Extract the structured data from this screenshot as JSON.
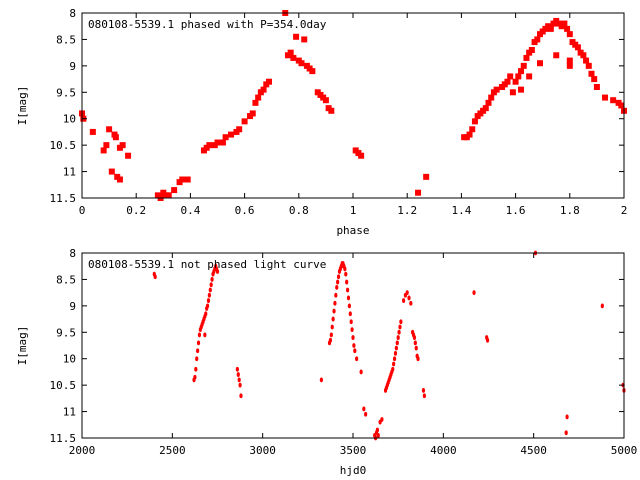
{
  "chart_data": [
    {
      "type": "scatter",
      "title": "080108-5539.1 phased with P=354.0day",
      "xlabel": "phase",
      "ylabel": "I[mag]",
      "xlim": [
        0,
        2
      ],
      "ylim": [
        11.5,
        8
      ],
      "y_inverted": true,
      "x_ticks": [
        "0",
        "0.2",
        "0.4",
        "0.6",
        "0.8",
        "1",
        "1.2",
        "1.4",
        "1.6",
        "1.8",
        "2"
      ],
      "y_ticks": [
        "8",
        "8.5",
        "9",
        "9.5",
        "10",
        "10.5",
        "11",
        "11.5"
      ],
      "marker_color": "#ff0000",
      "marker": "star",
      "points": [
        [
          0.0,
          9.9
        ],
        [
          0.005,
          10.0
        ],
        [
          0.04,
          10.25
        ],
        [
          0.08,
          10.6
        ],
        [
          0.09,
          10.5
        ],
        [
          0.1,
          10.2
        ],
        [
          0.11,
          11.0
        ],
        [
          0.12,
          10.3
        ],
        [
          0.125,
          10.35
        ],
        [
          0.13,
          11.1
        ],
        [
          0.14,
          11.15
        ],
        [
          0.14,
          10.55
        ],
        [
          0.15,
          10.5
        ],
        [
          0.17,
          10.7
        ],
        [
          0.28,
          11.45
        ],
        [
          0.29,
          11.5
        ],
        [
          0.3,
          11.4
        ],
        [
          0.31,
          11.45
        ],
        [
          0.32,
          11.45
        ],
        [
          0.34,
          11.35
        ],
        [
          0.36,
          11.2
        ],
        [
          0.37,
          11.15
        ],
        [
          0.39,
          11.15
        ],
        [
          0.45,
          10.6
        ],
        [
          0.46,
          10.55
        ],
        [
          0.47,
          10.5
        ],
        [
          0.49,
          10.5
        ],
        [
          0.5,
          10.45
        ],
        [
          0.52,
          10.45
        ],
        [
          0.53,
          10.35
        ],
        [
          0.55,
          10.3
        ],
        [
          0.57,
          10.25
        ],
        [
          0.58,
          10.2
        ],
        [
          0.6,
          10.05
        ],
        [
          0.62,
          9.95
        ],
        [
          0.63,
          9.9
        ],
        [
          0.64,
          9.7
        ],
        [
          0.65,
          9.6
        ],
        [
          0.66,
          9.5
        ],
        [
          0.67,
          9.45
        ],
        [
          0.68,
          9.35
        ],
        [
          0.69,
          9.3
        ],
        [
          0.75,
          8.0
        ],
        [
          0.76,
          8.8
        ],
        [
          0.77,
          8.75
        ],
        [
          0.78,
          8.85
        ],
        [
          0.79,
          8.45
        ],
        [
          0.8,
          8.9
        ],
        [
          0.81,
          8.95
        ],
        [
          0.82,
          8.5
        ],
        [
          0.83,
          9.0
        ],
        [
          0.84,
          9.05
        ],
        [
          0.85,
          9.1
        ],
        [
          0.87,
          9.5
        ],
        [
          0.88,
          9.55
        ],
        [
          0.89,
          9.6
        ],
        [
          0.9,
          9.65
        ],
        [
          0.91,
          9.8
        ],
        [
          0.92,
          9.85
        ],
        [
          1.01,
          10.6
        ],
        [
          1.02,
          10.65
        ],
        [
          1.03,
          10.7
        ],
        [
          1.24,
          11.4
        ],
        [
          1.27,
          11.1
        ],
        [
          1.41,
          10.35
        ],
        [
          1.42,
          10.35
        ],
        [
          1.43,
          10.3
        ],
        [
          1.44,
          10.2
        ],
        [
          1.45,
          10.05
        ],
        [
          1.46,
          9.95
        ],
        [
          1.47,
          9.9
        ],
        [
          1.48,
          9.85
        ],
        [
          1.49,
          9.8
        ],
        [
          1.5,
          9.7
        ],
        [
          1.51,
          9.6
        ],
        [
          1.52,
          9.5
        ],
        [
          1.53,
          9.45
        ],
        [
          1.55,
          9.4
        ],
        [
          1.56,
          9.35
        ],
        [
          1.57,
          9.3
        ],
        [
          1.58,
          9.2
        ],
        [
          1.59,
          9.5
        ],
        [
          1.6,
          9.3
        ],
        [
          1.61,
          9.2
        ],
        [
          1.62,
          9.1
        ],
        [
          1.63,
          9.0
        ],
        [
          1.64,
          8.85
        ],
        [
          1.65,
          8.75
        ],
        [
          1.66,
          8.7
        ],
        [
          1.67,
          8.55
        ],
        [
          1.68,
          8.5
        ],
        [
          1.69,
          8.4
        ],
        [
          1.7,
          8.35
        ],
        [
          1.71,
          8.3
        ],
        [
          1.72,
          8.25
        ],
        [
          1.73,
          8.3
        ],
        [
          1.74,
          8.2
        ],
        [
          1.75,
          8.15
        ],
        [
          1.76,
          8.2
        ],
        [
          1.77,
          8.25
        ],
        [
          1.78,
          8.2
        ],
        [
          1.79,
          8.3
        ],
        [
          1.8,
          8.4
        ],
        [
          1.81,
          8.55
        ],
        [
          1.82,
          8.6
        ],
        [
          1.83,
          8.65
        ],
        [
          1.84,
          8.75
        ],
        [
          1.85,
          8.8
        ],
        [
          1.86,
          8.9
        ],
        [
          1.87,
          9.0
        ],
        [
          1.88,
          9.15
        ],
        [
          1.89,
          9.25
        ],
        [
          1.9,
          9.4
        ],
        [
          1.93,
          9.6
        ],
        [
          1.96,
          9.65
        ],
        [
          1.98,
          9.7
        ],
        [
          1.99,
          9.75
        ],
        [
          2.0,
          9.85
        ],
        [
          1.8,
          9.0
        ],
        [
          1.8,
          8.9
        ],
        [
          1.75,
          8.8
        ],
        [
          1.69,
          8.95
        ],
        [
          1.65,
          9.2
        ],
        [
          1.62,
          9.45
        ]
      ]
    },
    {
      "type": "scatter",
      "title": "080108-5539.1 not phased light curve",
      "xlabel": "hjd0",
      "ylabel": "I[mag]",
      "xlim": [
        2000,
        5000
      ],
      "ylim": [
        11.5,
        8
      ],
      "y_inverted": true,
      "x_ticks": [
        "2000",
        "2500",
        "3000",
        "3500",
        "4000",
        "4500",
        "5000"
      ],
      "y_ticks": [
        "8",
        "8.5",
        "9",
        "9.5",
        "10",
        "10.5",
        "11",
        "11.5"
      ],
      "marker_color": "#ff0000",
      "marker": "dot",
      "points": [
        [
          2400,
          8.4
        ],
        [
          2405,
          8.45
        ],
        [
          2620,
          10.4
        ],
        [
          2625,
          10.35
        ],
        [
          2630,
          10.2
        ],
        [
          2635,
          10.0
        ],
        [
          2640,
          9.85
        ],
        [
          2645,
          9.7
        ],
        [
          2650,
          9.55
        ],
        [
          2655,
          9.45
        ],
        [
          2660,
          9.4
        ],
        [
          2665,
          9.35
        ],
        [
          2670,
          9.3
        ],
        [
          2675,
          9.25
        ],
        [
          2680,
          9.2
        ],
        [
          2685,
          9.15
        ],
        [
          2690,
          9.05
        ],
        [
          2695,
          9.0
        ],
        [
          2700,
          8.9
        ],
        [
          2705,
          8.8
        ],
        [
          2710,
          8.7
        ],
        [
          2715,
          8.6
        ],
        [
          2720,
          8.5
        ],
        [
          2725,
          8.4
        ],
        [
          2730,
          8.35
        ],
        [
          2735,
          8.3
        ],
        [
          2740,
          8.25
        ],
        [
          2745,
          8.3
        ],
        [
          2750,
          8.35
        ],
        [
          2680,
          9.55
        ],
        [
          2860,
          10.2
        ],
        [
          2865,
          10.3
        ],
        [
          2870,
          10.4
        ],
        [
          2875,
          10.5
        ],
        [
          2880,
          10.7
        ],
        [
          3325,
          10.4
        ],
        [
          3370,
          9.7
        ],
        [
          3375,
          9.65
        ],
        [
          3380,
          9.55
        ],
        [
          3385,
          9.4
        ],
        [
          3390,
          9.25
        ],
        [
          3395,
          9.1
        ],
        [
          3400,
          8.95
        ],
        [
          3405,
          8.8
        ],
        [
          3410,
          8.65
        ],
        [
          3415,
          8.55
        ],
        [
          3420,
          8.45
        ],
        [
          3425,
          8.35
        ],
        [
          3430,
          8.3
        ],
        [
          3435,
          8.25
        ],
        [
          3440,
          8.2
        ],
        [
          3445,
          8.2
        ],
        [
          3450,
          8.25
        ],
        [
          3455,
          8.3
        ],
        [
          3460,
          8.4
        ],
        [
          3465,
          8.55
        ],
        [
          3470,
          8.7
        ],
        [
          3475,
          8.85
        ],
        [
          3480,
          9.0
        ],
        [
          3485,
          9.15
        ],
        [
          3490,
          9.3
        ],
        [
          3495,
          9.45
        ],
        [
          3500,
          9.6
        ],
        [
          3505,
          9.75
        ],
        [
          3510,
          9.85
        ],
        [
          3520,
          10.0
        ],
        [
          3545,
          10.25
        ],
        [
          3560,
          10.95
        ],
        [
          3570,
          11.05
        ],
        [
          3620,
          11.45
        ],
        [
          3625,
          11.5
        ],
        [
          3630,
          11.4
        ],
        [
          3635,
          11.35
        ],
        [
          3640,
          11.45
        ],
        [
          3650,
          11.2
        ],
        [
          3660,
          11.15
        ],
        [
          3680,
          10.6
        ],
        [
          3685,
          10.55
        ],
        [
          3690,
          10.5
        ],
        [
          3695,
          10.45
        ],
        [
          3700,
          10.4
        ],
        [
          3705,
          10.35
        ],
        [
          3710,
          10.3
        ],
        [
          3715,
          10.25
        ],
        [
          3720,
          10.2
        ],
        [
          3725,
          10.1
        ],
        [
          3730,
          10.0
        ],
        [
          3735,
          9.9
        ],
        [
          3740,
          9.8
        ],
        [
          3745,
          9.7
        ],
        [
          3750,
          9.6
        ],
        [
          3755,
          9.5
        ],
        [
          3760,
          9.4
        ],
        [
          3765,
          9.3
        ],
        [
          3780,
          8.9
        ],
        [
          3790,
          8.8
        ],
        [
          3800,
          8.75
        ],
        [
          3810,
          8.85
        ],
        [
          3820,
          8.95
        ],
        [
          3830,
          9.5
        ],
        [
          3835,
          9.55
        ],
        [
          3840,
          9.6
        ],
        [
          3845,
          9.7
        ],
        [
          3850,
          9.8
        ],
        [
          3855,
          9.95
        ],
        [
          3860,
          10.0
        ],
        [
          3890,
          10.6
        ],
        [
          3895,
          10.7
        ],
        [
          4170,
          8.75
        ],
        [
          4240,
          9.6
        ],
        [
          4245,
          9.65
        ],
        [
          4510,
          8.0
        ],
        [
          4680,
          11.4
        ],
        [
          4685,
          11.1
        ],
        [
          4880,
          9.0
        ],
        [
          4995,
          10.5
        ],
        [
          5000,
          10.6
        ]
      ]
    }
  ]
}
